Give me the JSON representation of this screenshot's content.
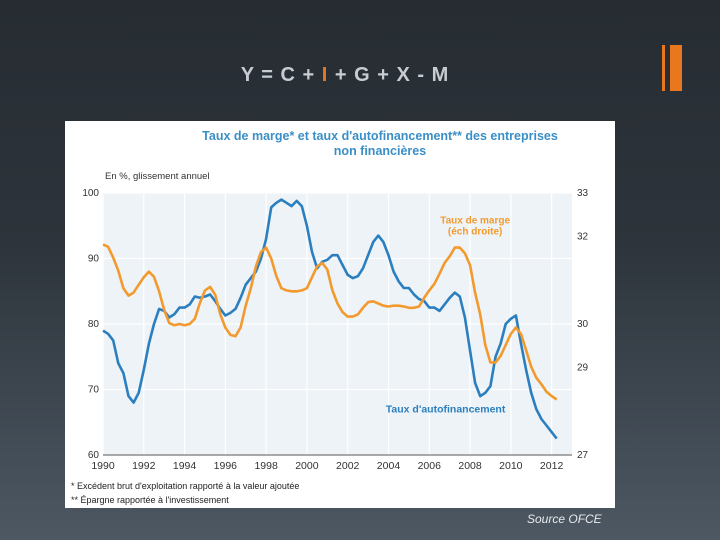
{
  "slide": {
    "title_before": "Y = C + ",
    "title_highlight": "I",
    "title_after": " + G + X - M",
    "source": "Source OFCE"
  },
  "colors": {
    "margin_series": "#f29a2e",
    "selffinancing_series": "#2b7fbf",
    "title": "#3a8fc7",
    "accent": "#e9771e"
  },
  "chart_data": {
    "type": "line",
    "title_line1": "Taux de marge* et taux d'autofinancement** des entreprises",
    "title_line2": "non financières",
    "unit_label": "En %, glissement annuel",
    "grid": true,
    "x_ticks": [
      "1990",
      "1992",
      "1994",
      "1996",
      "1998",
      "2000",
      "2002",
      "2004",
      "2006",
      "2008",
      "2010",
      "2012"
    ],
    "xlim": [
      1990,
      2013
    ],
    "left_axis": {
      "ylim": [
        60,
        100
      ],
      "ticks": [
        "60",
        "70",
        "80",
        "90",
        "100"
      ]
    },
    "right_axis": {
      "ylim": [
        27,
        33
      ],
      "ticks": [
        "27",
        "29",
        "30",
        "32",
        "33"
      ]
    },
    "series": [
      {
        "name": "Taux d'autofinancement",
        "axis": "left",
        "label_lines": [
          "Taux d'autofinancement"
        ],
        "points": [
          [
            1990.0,
            79
          ],
          [
            1990.25,
            78.5
          ],
          [
            1990.5,
            77.5
          ],
          [
            1990.75,
            74
          ],
          [
            1991.0,
            72.5
          ],
          [
            1991.25,
            69
          ],
          [
            1991.5,
            68
          ],
          [
            1991.75,
            69.5
          ],
          [
            1992.0,
            73
          ],
          [
            1992.25,
            77
          ],
          [
            1992.5,
            80
          ],
          [
            1992.75,
            82.3
          ],
          [
            1993.0,
            82
          ],
          [
            1993.25,
            81
          ],
          [
            1993.5,
            81.5
          ],
          [
            1993.75,
            82.5
          ],
          [
            1994.0,
            82.5
          ],
          [
            1994.25,
            83
          ],
          [
            1994.5,
            84.2
          ],
          [
            1994.75,
            84
          ],
          [
            1995.0,
            84.2
          ],
          [
            1995.25,
            84.5
          ],
          [
            1995.5,
            83.5
          ],
          [
            1995.75,
            82.3
          ],
          [
            1996.0,
            81.3
          ],
          [
            1996.25,
            81.7
          ],
          [
            1996.5,
            82.3
          ],
          [
            1996.75,
            84
          ],
          [
            1997.0,
            86
          ],
          [
            1997.25,
            87
          ],
          [
            1997.5,
            88
          ],
          [
            1997.75,
            90
          ],
          [
            1998.0,
            93
          ],
          [
            1998.25,
            97.8
          ],
          [
            1998.5,
            98.5
          ],
          [
            1998.75,
            99
          ],
          [
            1999.0,
            98.5
          ],
          [
            1999.25,
            98
          ],
          [
            1999.5,
            98.8
          ],
          [
            1999.75,
            98
          ],
          [
            2000.0,
            95
          ],
          [
            2000.25,
            91
          ],
          [
            2000.5,
            88.5
          ],
          [
            2000.75,
            89.5
          ],
          [
            2001.0,
            89.8
          ],
          [
            2001.25,
            90.5
          ],
          [
            2001.5,
            90.5
          ],
          [
            2001.75,
            89
          ],
          [
            2002.0,
            87.5
          ],
          [
            2002.25,
            87
          ],
          [
            2002.5,
            87.3
          ],
          [
            2002.75,
            88.5
          ],
          [
            2003.0,
            90.5
          ],
          [
            2003.25,
            92.5
          ],
          [
            2003.5,
            93.5
          ],
          [
            2003.75,
            92.5
          ],
          [
            2004.0,
            90.5
          ],
          [
            2004.25,
            88
          ],
          [
            2004.5,
            86.5
          ],
          [
            2004.75,
            85.5
          ],
          [
            2005.0,
            85.5
          ],
          [
            2005.25,
            84.5
          ],
          [
            2005.5,
            83.8
          ],
          [
            2005.75,
            83.5
          ],
          [
            2006.0,
            82.5
          ],
          [
            2006.25,
            82.5
          ],
          [
            2006.5,
            82
          ],
          [
            2006.75,
            83
          ],
          [
            2007.0,
            84
          ],
          [
            2007.25,
            84.8
          ],
          [
            2007.5,
            84.2
          ],
          [
            2007.75,
            81
          ],
          [
            2008.0,
            76
          ],
          [
            2008.25,
            71
          ],
          [
            2008.5,
            69
          ],
          [
            2008.75,
            69.5
          ],
          [
            2009.0,
            70.5
          ],
          [
            2009.25,
            75
          ],
          [
            2009.5,
            77
          ],
          [
            2009.75,
            80
          ],
          [
            2010.0,
            80.8
          ],
          [
            2010.25,
            81.3
          ],
          [
            2010.5,
            77
          ],
          [
            2010.75,
            73
          ],
          [
            2011.0,
            69.5
          ],
          [
            2011.25,
            67
          ],
          [
            2011.5,
            65.5
          ],
          [
            2011.75,
            64.5
          ],
          [
            2012.0,
            63.5
          ],
          [
            2012.25,
            62.5
          ]
        ]
      },
      {
        "name": "Taux de marge",
        "axis": "right",
        "label_lines": [
          "Taux de marge",
          "(éch droite)"
        ],
        "points": [
          [
            1990.0,
            31.82
          ],
          [
            1990.25,
            31.77
          ],
          [
            1990.5,
            31.52
          ],
          [
            1990.75,
            31.22
          ],
          [
            1991.0,
            30.82
          ],
          [
            1991.25,
            30.65
          ],
          [
            1991.5,
            30.72
          ],
          [
            1991.75,
            30.9
          ],
          [
            1992.0,
            31.07
          ],
          [
            1992.25,
            31.2
          ],
          [
            1992.5,
            31.08
          ],
          [
            1992.75,
            30.75
          ],
          [
            1993.0,
            30.32
          ],
          [
            1993.25,
            30.02
          ],
          [
            1993.5,
            29.97
          ],
          [
            1993.75,
            30.0
          ],
          [
            1994.0,
            29.97
          ],
          [
            1994.25,
            30.0
          ],
          [
            1994.5,
            30.12
          ],
          [
            1994.75,
            30.48
          ],
          [
            1995.0,
            30.77
          ],
          [
            1995.25,
            30.85
          ],
          [
            1995.5,
            30.67
          ],
          [
            1995.75,
            30.22
          ],
          [
            1996.0,
            29.92
          ],
          [
            1996.25,
            29.75
          ],
          [
            1996.5,
            29.72
          ],
          [
            1996.75,
            29.92
          ],
          [
            1997.0,
            30.42
          ],
          [
            1997.25,
            30.82
          ],
          [
            1997.5,
            31.32
          ],
          [
            1997.75,
            31.65
          ],
          [
            1998.0,
            31.75
          ],
          [
            1998.25,
            31.5
          ],
          [
            1998.5,
            31.1
          ],
          [
            1998.75,
            30.82
          ],
          [
            1999.0,
            30.77
          ],
          [
            1999.25,
            30.75
          ],
          [
            1999.5,
            30.75
          ],
          [
            1999.75,
            30.77
          ],
          [
            2000.0,
            30.82
          ],
          [
            2000.25,
            31.07
          ],
          [
            2000.5,
            31.32
          ],
          [
            2000.75,
            31.4
          ],
          [
            2001.0,
            31.25
          ],
          [
            2001.25,
            30.77
          ],
          [
            2001.5,
            30.47
          ],
          [
            2001.75,
            30.27
          ],
          [
            2002.0,
            30.17
          ],
          [
            2002.25,
            30.17
          ],
          [
            2002.5,
            30.22
          ],
          [
            2002.75,
            30.37
          ],
          [
            2003.0,
            30.5
          ],
          [
            2003.25,
            30.52
          ],
          [
            2003.5,
            30.47
          ],
          [
            2003.75,
            30.42
          ],
          [
            2004.0,
            30.4
          ],
          [
            2004.25,
            30.42
          ],
          [
            2004.5,
            30.42
          ],
          [
            2004.75,
            30.4
          ],
          [
            2005.0,
            30.37
          ],
          [
            2005.25,
            30.37
          ],
          [
            2005.5,
            30.4
          ],
          [
            2005.75,
            30.6
          ],
          [
            2006.0,
            30.77
          ],
          [
            2006.25,
            30.92
          ],
          [
            2006.5,
            31.15
          ],
          [
            2006.75,
            31.4
          ],
          [
            2007.0,
            31.55
          ],
          [
            2007.25,
            31.75
          ],
          [
            2007.5,
            31.75
          ],
          [
            2007.75,
            31.62
          ],
          [
            2008.0,
            31.35
          ],
          [
            2008.25,
            30.72
          ],
          [
            2008.5,
            30.22
          ],
          [
            2008.75,
            29.52
          ],
          [
            2009.0,
            29.12
          ],
          [
            2009.25,
            29.12
          ],
          [
            2009.5,
            29.27
          ],
          [
            2009.75,
            29.52
          ],
          [
            2010.0,
            29.77
          ],
          [
            2010.25,
            29.92
          ],
          [
            2010.5,
            29.77
          ],
          [
            2010.75,
            29.4
          ],
          [
            2011.0,
            29.02
          ],
          [
            2011.25,
            28.77
          ],
          [
            2011.5,
            28.62
          ],
          [
            2011.75,
            28.45
          ],
          [
            2012.0,
            28.35
          ],
          [
            2012.25,
            28.27
          ]
        ]
      }
    ],
    "footnotes": [
      "* Excédent brut d'exploitation rapporté à la valeur ajoutée",
      "** Épargne rapportée à l'investissement"
    ]
  }
}
